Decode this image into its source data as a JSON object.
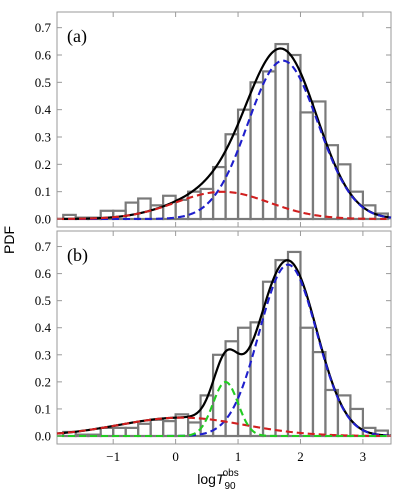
{
  "axes": {
    "ylabel": "PDF",
    "xlabel_base": "log",
    "xlabel_symbol": "T",
    "xlabel_sub": "90",
    "xlabel_sup": "obs"
  },
  "chart_data": [
    {
      "type": "bar",
      "panel_label": "(a)",
      "xlim": [
        -1.9,
        3.45
      ],
      "ylim": [
        0,
        0.75
      ],
      "x_ticks": [
        "-1",
        "0",
        "1",
        "2",
        "3"
      ],
      "x_tick_values": [
        -1,
        0,
        1,
        2,
        3
      ],
      "y_ticks": [
        "0.0",
        "0.1",
        "0.2",
        "0.3",
        "0.4",
        "0.5",
        "0.6",
        "0.7"
      ],
      "y_tick_values": [
        0,
        0.1,
        0.2,
        0.3,
        0.4,
        0.5,
        0.6,
        0.7
      ],
      "histogram": {
        "bin_edges": [
          -1.8,
          -1.6,
          -1.4,
          -1.2,
          -1.0,
          -0.8,
          -0.6,
          -0.4,
          -0.2,
          0.0,
          0.2,
          0.4,
          0.6,
          0.8,
          1.0,
          1.2,
          1.4,
          1.6,
          1.8,
          2.0,
          2.2,
          2.4,
          2.6,
          2.8,
          3.0,
          3.2,
          3.4
        ],
        "values": [
          0.015,
          0.005,
          0.005,
          0.03,
          0.03,
          0.06,
          0.075,
          0.05,
          0.085,
          0.07,
          0.1,
          0.11,
          0.19,
          0.31,
          0.4,
          0.5,
          0.54,
          0.64,
          0.6,
          0.39,
          0.43,
          0.27,
          0.2,
          0.1,
          0.05,
          0.02
        ]
      },
      "series": [
        {
          "color": "#000000",
          "dash": "solid",
          "components": [
            {
              "weight": 0.187,
              "mean": 0.75,
              "sd": 0.75
            },
            {
              "weight": 0.813,
              "mean": 1.72,
              "sd": 0.56
            }
          ]
        },
        {
          "color": "#1f1fcc",
          "dash": "dashed",
          "components": [
            {
              "weight": 0.813,
              "mean": 1.72,
              "sd": 0.56
            }
          ]
        },
        {
          "color": "#d11f1f",
          "dash": "dashed",
          "components": [
            {
              "weight": 0.187,
              "mean": 0.75,
              "sd": 0.75
            }
          ]
        }
      ]
    },
    {
      "type": "bar",
      "panel_label": "(b)",
      "xlim": [
        -1.9,
        3.45
      ],
      "ylim": [
        0,
        0.75
      ],
      "x_ticks": [
        "-1",
        "0",
        "1",
        "2",
        "3"
      ],
      "x_tick_values": [
        -1,
        0,
        1,
        2,
        3
      ],
      "y_ticks": [
        "0.0",
        "0.1",
        "0.2",
        "0.3",
        "0.4",
        "0.5",
        "0.6",
        "0.7"
      ],
      "y_tick_values": [
        0,
        0.1,
        0.2,
        0.3,
        0.4,
        0.5,
        0.6,
        0.7
      ],
      "histogram": {
        "bin_edges": [
          -1.8,
          -1.6,
          -1.4,
          -1.2,
          -1.0,
          -0.8,
          -0.6,
          -0.4,
          -0.2,
          0.0,
          0.2,
          0.4,
          0.6,
          0.8,
          1.0,
          1.2,
          1.4,
          1.6,
          1.8,
          2.0,
          2.2,
          2.4,
          2.6,
          2.8,
          3.0,
          3.2,
          3.4
        ],
        "values": [
          0.015,
          0.005,
          0.005,
          0.03,
          0.03,
          0.03,
          0.045,
          0.06,
          0.055,
          0.08,
          0.05,
          0.15,
          0.3,
          0.35,
          0.4,
          0.42,
          0.57,
          0.65,
          0.68,
          0.4,
          0.31,
          0.17,
          0.15,
          0.1,
          0.03,
          0.02
        ]
      },
      "series": [
        {
          "color": "#000000",
          "dash": "solid",
          "components": [
            {
              "weight": 0.17,
              "mean": 0.1,
              "sd": 1.0
            },
            {
              "weight": 0.1,
              "mean": 0.8,
              "sd": 0.2
            },
            {
              "weight": 0.73,
              "mean": 1.8,
              "sd": 0.46
            }
          ]
        },
        {
          "color": "#1f1fcc",
          "dash": "dashed",
          "components": [
            {
              "weight": 0.73,
              "mean": 1.8,
              "sd": 0.46
            }
          ]
        },
        {
          "color": "#d11f1f",
          "dash": "dashed",
          "components": [
            {
              "weight": 0.17,
              "mean": 0.1,
              "sd": 1.0
            }
          ]
        },
        {
          "color": "#22cc22",
          "dash": "dashed",
          "components": [
            {
              "weight": 0.1,
              "mean": 0.8,
              "sd": 0.2
            }
          ]
        }
      ]
    }
  ]
}
